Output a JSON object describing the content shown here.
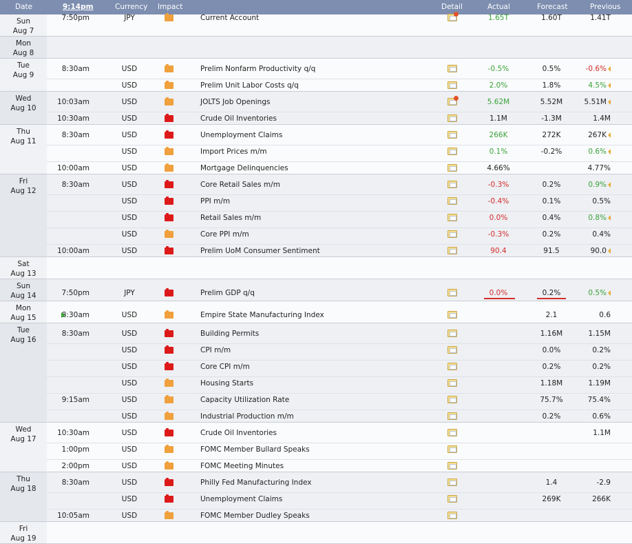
{
  "columns": {
    "date": "Date",
    "time": "9:14pm",
    "currency": "Currency",
    "impact": "Impact",
    "detail": "Detail",
    "actual": "Actual",
    "forecast": "Forecast",
    "previous": "Previous"
  },
  "colors": {
    "header": "#7d8eb0",
    "high": "#dd1a1a",
    "medium": "#f0a03c",
    "green": "#3aa23a",
    "red": "#d32b2b"
  },
  "days": [
    {
      "label": [
        "Sun",
        "Aug 7"
      ]
    },
    {
      "label": [
        "Mon",
        "Aug 8"
      ]
    },
    {
      "label": [
        "Tue",
        "Aug 9"
      ]
    },
    {
      "label": [
        "Wed",
        "Aug 10"
      ]
    },
    {
      "label": [
        "Thu",
        "Aug 11"
      ]
    },
    {
      "label": [
        "Fri",
        "Aug 12"
      ]
    },
    {
      "label": [
        "Sat",
        "Aug 13"
      ]
    },
    {
      "label": [
        "Sun",
        "Aug 14"
      ]
    },
    {
      "label": [
        "Mon",
        "Aug 15"
      ]
    },
    {
      "label": [
        "Tue",
        "Aug 16"
      ]
    },
    {
      "label": [
        "Wed",
        "Aug 17"
      ]
    },
    {
      "label": [
        "Thu",
        "Aug 18"
      ]
    },
    {
      "label": [
        "Fri",
        "Aug 19"
      ]
    }
  ],
  "events": [
    {
      "day": 0,
      "time": "7:50pm",
      "currency": "JPY",
      "impact": "medium",
      "event": "Current Account",
      "actual": "1.65T",
      "actual_color": "green",
      "forecast": "1.60T",
      "previous": "1.41T",
      "previous_color": "",
      "revised": false,
      "detail_new": true
    },
    {
      "day": 2,
      "time": "8:30am",
      "currency": "USD",
      "impact": "medium",
      "event": "Prelim Nonfarm Productivity q/q",
      "actual": "-0.5%",
      "actual_color": "green",
      "forecast": "0.5%",
      "previous": "-0.6%",
      "previous_color": "red",
      "revised": true,
      "detail_new": false
    },
    {
      "day": 2,
      "time": "",
      "currency": "USD",
      "impact": "medium",
      "event": "Prelim Unit Labor Costs q/q",
      "actual": "2.0%",
      "actual_color": "green",
      "forecast": "1.8%",
      "previous": "4.5%",
      "previous_color": "green",
      "revised": true,
      "detail_new": false
    },
    {
      "day": 3,
      "time": "10:03am",
      "currency": "USD",
      "impact": "medium",
      "event": "JOLTS Job Openings",
      "actual": "5.62M",
      "actual_color": "green",
      "forecast": "5.52M",
      "previous": "5.51M",
      "previous_color": "",
      "revised": true,
      "detail_new": true
    },
    {
      "day": 3,
      "time": "10:30am",
      "currency": "USD",
      "impact": "high",
      "event": "Crude Oil Inventories",
      "actual": "1.1M",
      "actual_color": "",
      "forecast": "-1.3M",
      "previous": "1.4M",
      "previous_color": "",
      "revised": false,
      "detail_new": false
    },
    {
      "day": 4,
      "time": "8:30am",
      "currency": "USD",
      "impact": "high",
      "event": "Unemployment Claims",
      "actual": "266K",
      "actual_color": "green",
      "forecast": "272K",
      "previous": "267K",
      "previous_color": "",
      "revised": true,
      "detail_new": false
    },
    {
      "day": 4,
      "time": "",
      "currency": "USD",
      "impact": "medium",
      "event": "Import Prices m/m",
      "actual": "0.1%",
      "actual_color": "green",
      "forecast": "-0.2%",
      "previous": "0.6%",
      "previous_color": "green",
      "revised": true,
      "detail_new": false
    },
    {
      "day": 4,
      "time": "10:00am",
      "currency": "USD",
      "impact": "medium",
      "event": "Mortgage Delinquencies",
      "actual": "4.66%",
      "actual_color": "",
      "forecast": "",
      "previous": "4.77%",
      "previous_color": "",
      "revised": false,
      "detail_new": false
    },
    {
      "day": 5,
      "time": "8:30am",
      "currency": "USD",
      "impact": "high",
      "event": "Core Retail Sales m/m",
      "actual": "-0.3%",
      "actual_color": "red",
      "forecast": "0.2%",
      "previous": "0.9%",
      "previous_color": "green",
      "revised": true,
      "detail_new": false
    },
    {
      "day": 5,
      "time": "",
      "currency": "USD",
      "impact": "high",
      "event": "PPI m/m",
      "actual": "-0.4%",
      "actual_color": "red",
      "forecast": "0.1%",
      "previous": "0.5%",
      "previous_color": "",
      "revised": false,
      "detail_new": false
    },
    {
      "day": 5,
      "time": "",
      "currency": "USD",
      "impact": "high",
      "event": "Retail Sales m/m",
      "actual": "0.0%",
      "actual_color": "red",
      "forecast": "0.4%",
      "previous": "0.8%",
      "previous_color": "green",
      "revised": true,
      "detail_new": false
    },
    {
      "day": 5,
      "time": "",
      "currency": "USD",
      "impact": "medium",
      "event": "Core PPI m/m",
      "actual": "-0.3%",
      "actual_color": "red",
      "forecast": "0.2%",
      "previous": "0.4%",
      "previous_color": "",
      "revised": false,
      "detail_new": false
    },
    {
      "day": 5,
      "time": "10:00am",
      "currency": "USD",
      "impact": "high",
      "event": "Prelim UoM Consumer Sentiment",
      "actual": "90.4",
      "actual_color": "red",
      "forecast": "91.5",
      "previous": "90.0",
      "previous_color": "",
      "revised": true,
      "detail_new": false
    },
    {
      "day": 7,
      "time": "7:50pm",
      "currency": "JPY",
      "impact": "high",
      "event": "Prelim GDP q/q",
      "actual": "0.0%",
      "actual_color": "red",
      "forecast": "0.2%",
      "previous": "0.5%",
      "previous_color": "green",
      "revised": true,
      "detail_new": false,
      "annotated": true
    },
    {
      "day": 8,
      "time": "8:30am",
      "currency": "USD",
      "impact": "medium",
      "event": "Empire State Manufacturing Index",
      "actual": "",
      "actual_color": "",
      "forecast": "2.1",
      "previous": "0.6",
      "previous_color": "",
      "revised": false,
      "detail_new": false,
      "now": true
    },
    {
      "day": 9,
      "time": "8:30am",
      "currency": "USD",
      "impact": "high",
      "event": "Building Permits",
      "actual": "",
      "actual_color": "",
      "forecast": "1.16M",
      "previous": "1.15M",
      "previous_color": "",
      "revised": false,
      "detail_new": false
    },
    {
      "day": 9,
      "time": "",
      "currency": "USD",
      "impact": "high",
      "event": "CPI m/m",
      "actual": "",
      "actual_color": "",
      "forecast": "0.0%",
      "previous": "0.2%",
      "previous_color": "",
      "revised": false,
      "detail_new": false
    },
    {
      "day": 9,
      "time": "",
      "currency": "USD",
      "impact": "high",
      "event": "Core CPI m/m",
      "actual": "",
      "actual_color": "",
      "forecast": "0.2%",
      "previous": "0.2%",
      "previous_color": "",
      "revised": false,
      "detail_new": false
    },
    {
      "day": 9,
      "time": "",
      "currency": "USD",
      "impact": "medium",
      "event": "Housing Starts",
      "actual": "",
      "actual_color": "",
      "forecast": "1.18M",
      "previous": "1.19M",
      "previous_color": "",
      "revised": false,
      "detail_new": false
    },
    {
      "day": 9,
      "time": "9:15am",
      "currency": "USD",
      "impact": "medium",
      "event": "Capacity Utilization Rate",
      "actual": "",
      "actual_color": "",
      "forecast": "75.7%",
      "previous": "75.4%",
      "previous_color": "",
      "revised": false,
      "detail_new": false
    },
    {
      "day": 9,
      "time": "",
      "currency": "USD",
      "impact": "medium",
      "event": "Industrial Production m/m",
      "actual": "",
      "actual_color": "",
      "forecast": "0.2%",
      "previous": "0.6%",
      "previous_color": "",
      "revised": false,
      "detail_new": false
    },
    {
      "day": 10,
      "time": "10:30am",
      "currency": "USD",
      "impact": "high",
      "event": "Crude Oil Inventories",
      "actual": "",
      "actual_color": "",
      "forecast": "",
      "previous": "1.1M",
      "previous_color": "",
      "revised": false,
      "detail_new": false
    },
    {
      "day": 10,
      "time": "1:00pm",
      "currency": "USD",
      "impact": "medium",
      "event": "FOMC Member Bullard Speaks",
      "actual": "",
      "actual_color": "",
      "forecast": "",
      "previous": "",
      "previous_color": "",
      "revised": false,
      "detail_new": false
    },
    {
      "day": 10,
      "time": "2:00pm",
      "currency": "USD",
      "impact": "medium",
      "event": "FOMC Meeting Minutes",
      "actual": "",
      "actual_color": "",
      "forecast": "",
      "previous": "",
      "previous_color": "",
      "revised": false,
      "detail_new": false
    },
    {
      "day": 11,
      "time": "8:30am",
      "currency": "USD",
      "impact": "high",
      "event": "Philly Fed Manufacturing Index",
      "actual": "",
      "actual_color": "",
      "forecast": "1.4",
      "previous": "-2.9",
      "previous_color": "",
      "revised": false,
      "detail_new": false
    },
    {
      "day": 11,
      "time": "",
      "currency": "USD",
      "impact": "high",
      "event": "Unemployment Claims",
      "actual": "",
      "actual_color": "",
      "forecast": "269K",
      "previous": "266K",
      "previous_color": "",
      "revised": false,
      "detail_new": false
    },
    {
      "day": 11,
      "time": "10:05am",
      "currency": "USD",
      "impact": "medium",
      "event": "FOMC Member Dudley Speaks",
      "actual": "",
      "actual_color": "",
      "forecast": "",
      "previous": "",
      "previous_color": "",
      "revised": false,
      "detail_new": false
    }
  ]
}
